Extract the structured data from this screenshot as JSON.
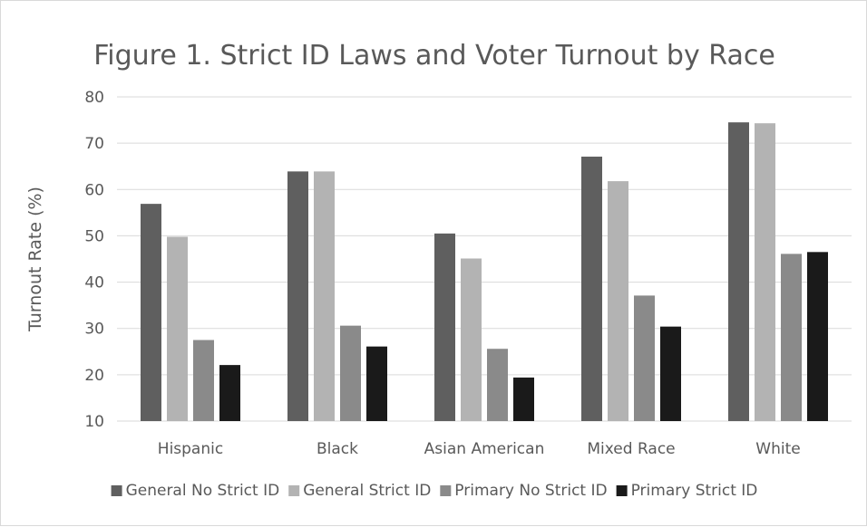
{
  "chart_data": {
    "type": "bar",
    "title": "Figure 1. Strict ID Laws and Voter Turnout by Race",
    "xlabel": "",
    "ylabel": "Turnout Rate (%)",
    "ylim": [
      10,
      80
    ],
    "yticks": [
      10,
      20,
      30,
      40,
      50,
      60,
      70,
      80
    ],
    "grid": true,
    "legend_position": "bottom",
    "categories": [
      "Hispanic",
      "Black",
      "Asian American",
      "Mixed Race",
      "White"
    ],
    "series": [
      {
        "name": "General No Strict ID",
        "color": "#5f5f5f",
        "values": [
          56.9,
          63.9,
          50.5,
          67.1,
          74.5
        ]
      },
      {
        "name": "General Strict ID",
        "color": "#b3b3b3",
        "values": [
          49.8,
          63.9,
          45.1,
          61.8,
          74.3
        ]
      },
      {
        "name": "Primary No Strict ID",
        "color": "#8a8a8a",
        "values": [
          27.5,
          30.6,
          25.6,
          37.1,
          46.1
        ]
      },
      {
        "name": "Primary Strict ID",
        "color": "#1a1a1a",
        "values": [
          22.1,
          26.1,
          19.4,
          30.4,
          46.5
        ]
      }
    ]
  }
}
